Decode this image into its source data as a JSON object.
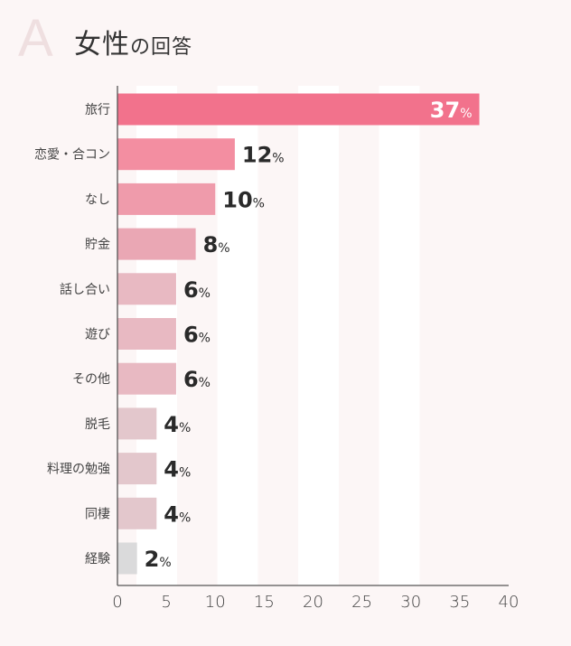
{
  "header": {
    "letter": "A",
    "title_main": "女性",
    "title_sub": "の回答"
  },
  "chart_data": {
    "type": "bar",
    "orientation": "horizontal",
    "categories": [
      "旅行",
      "恋愛・合コン",
      "なし",
      "貯金",
      "話し合い",
      "遊び",
      "その他",
      "脱毛",
      "料理の勉強",
      "同棲",
      "経験"
    ],
    "values": [
      37,
      12,
      10,
      8,
      6,
      6,
      6,
      4,
      4,
      4,
      2
    ],
    "value_suffix": "%",
    "xlim": [
      0,
      40
    ],
    "xticks": [
      0,
      5,
      10,
      15,
      20,
      25,
      30,
      35,
      40
    ],
    "colors": [
      "#f2728c",
      "#f38ea1",
      "#ef9bab",
      "#eaa7b4",
      "#e8b9c2",
      "#e8b9c2",
      "#e8b9c2",
      "#e3c7cc",
      "#e3c7cc",
      "#e3c7cc",
      "#dadadb"
    ]
  }
}
